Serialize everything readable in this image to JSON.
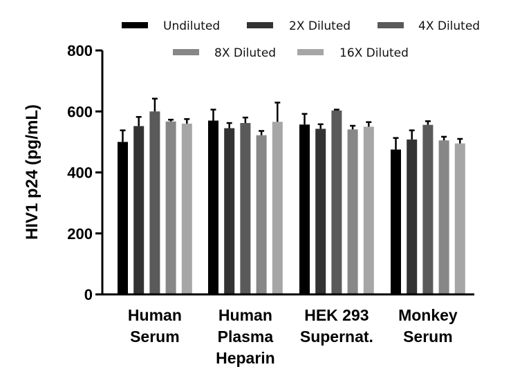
{
  "chart_data": {
    "type": "bar",
    "title": "",
    "xlabel": "",
    "ylabel": "HIV1 p24 (pg/mL)",
    "ylim": [
      0,
      800
    ],
    "yticks": [
      0,
      200,
      400,
      600,
      800
    ],
    "grid": false,
    "legend_position": "top",
    "categories": [
      [
        "Human",
        "Serum"
      ],
      [
        "Human",
        "Plasma",
        "Heparin"
      ],
      [
        "HEK 293",
        "Supernat."
      ],
      [
        "Monkey",
        "Serum"
      ]
    ],
    "series": [
      {
        "name": "Undiluted",
        "color": "#000000",
        "values": [
          500,
          570,
          557,
          475
        ],
        "errors": [
          38,
          36,
          35,
          38
        ]
      },
      {
        "name": "2X Diluted",
        "color": "#333333",
        "values": [
          552,
          545,
          543,
          508
        ],
        "errors": [
          30,
          17,
          15,
          30
        ]
      },
      {
        "name": "4X Diluted",
        "color": "#5a5a5a",
        "values": [
          600,
          562,
          603,
          556
        ],
        "errors": [
          42,
          18,
          3,
          12
        ]
      },
      {
        "name": "8X Diluted",
        "color": "#878787",
        "values": [
          567,
          522,
          541,
          505
        ],
        "errors": [
          6,
          14,
          12,
          12
        ]
      },
      {
        "name": "16X Diluted",
        "color": "#a6a6a6",
        "values": [
          560,
          566,
          550,
          495
        ],
        "errors": [
          15,
          63,
          15,
          15
        ]
      }
    ]
  }
}
